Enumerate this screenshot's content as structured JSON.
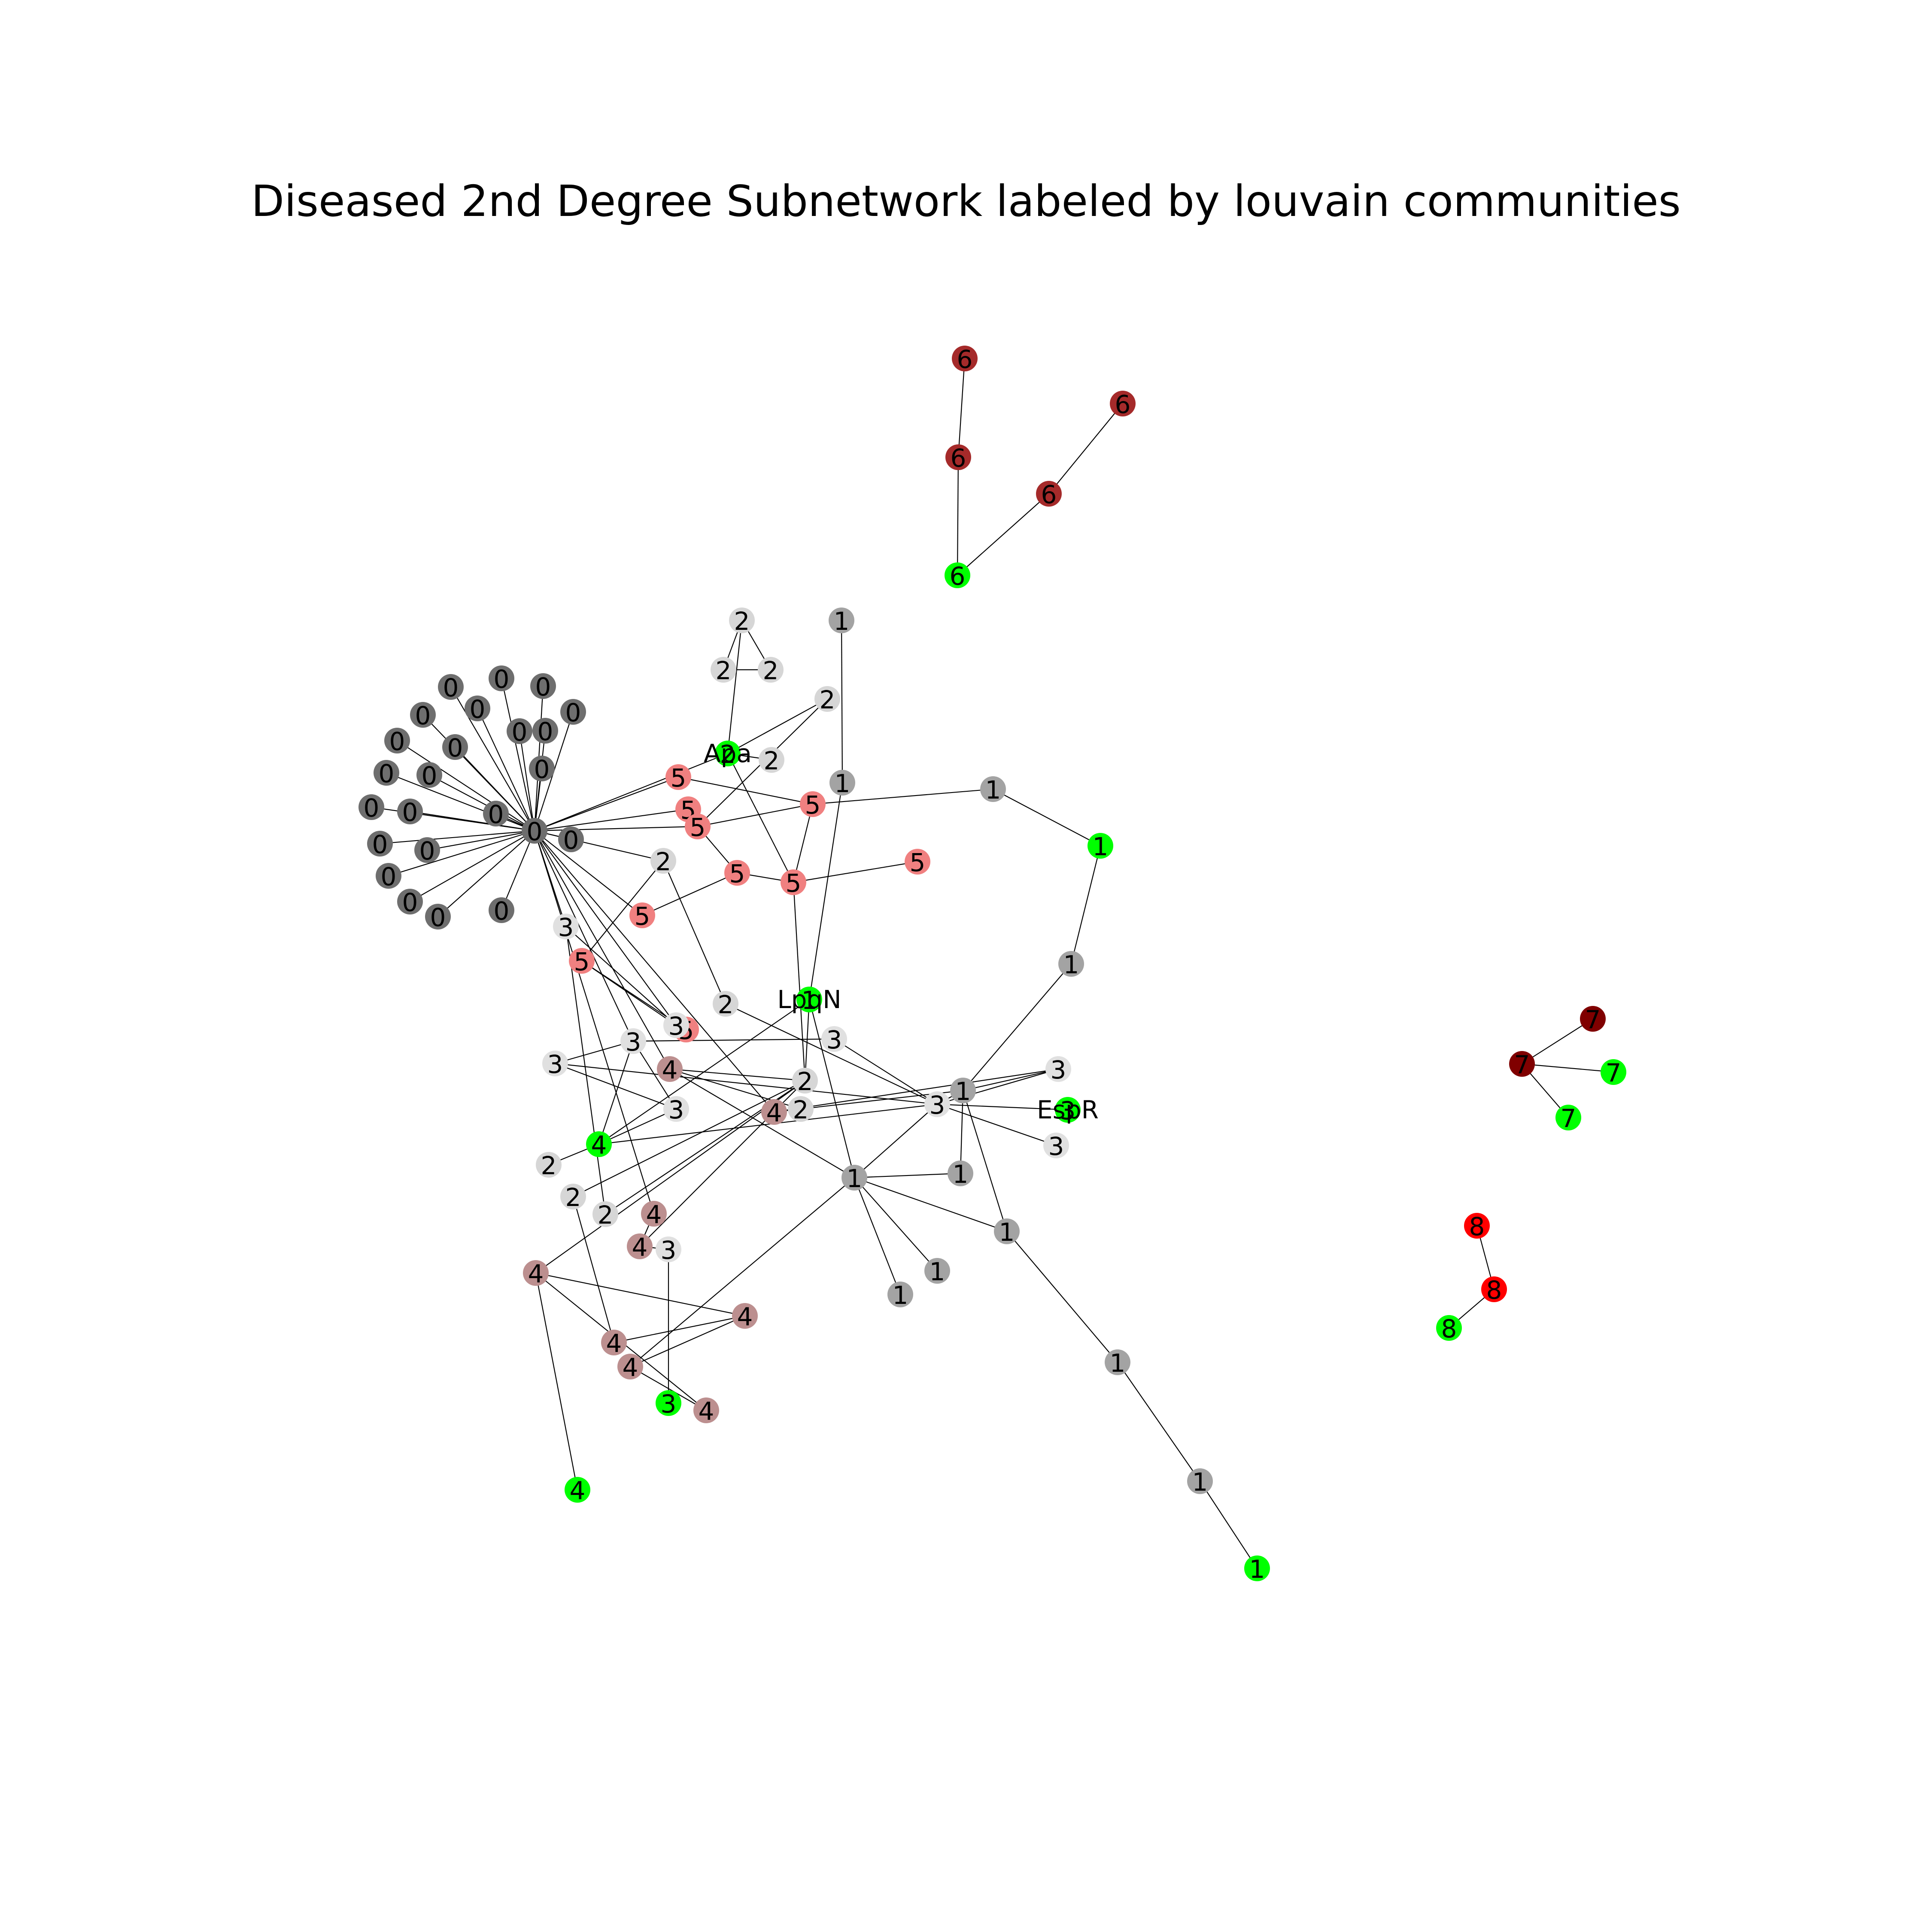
{
  "figure": {
    "title": "Diseased 2nd Degree Subnetwork labeled by louvain communities"
  },
  "colors": {
    "community_0": "#6e6e6e",
    "community_1": "#a3a3a3",
    "community_2": "#d6d6d6",
    "community_3": "#e0e0e0",
    "community_4": "#bc8f8f",
    "community_5": "#f08080",
    "community_6": "#a52a2a",
    "community_7": "#800000",
    "community_8": "#ff0000",
    "highlight": "#00ff00",
    "edge": "#000000",
    "label_text": "#000000"
  },
  "graph": {
    "nodes": [
      {
        "id": "h0",
        "community": "0",
        "highlighted": false
      },
      {
        "id": "a1",
        "community": "0",
        "highlighted": false
      },
      {
        "id": "a2",
        "community": "0",
        "highlighted": false
      },
      {
        "id": "a3",
        "community": "0",
        "highlighted": false
      },
      {
        "id": "a4",
        "community": "0",
        "highlighted": false
      },
      {
        "id": "a5",
        "community": "0",
        "highlighted": false
      },
      {
        "id": "a6",
        "community": "0",
        "highlighted": false
      },
      {
        "id": "a7",
        "community": "0",
        "highlighted": false
      },
      {
        "id": "a8",
        "community": "0",
        "highlighted": false
      },
      {
        "id": "a9",
        "community": "0",
        "highlighted": false
      },
      {
        "id": "a10",
        "community": "0",
        "highlighted": false
      },
      {
        "id": "a11",
        "community": "0",
        "highlighted": false
      },
      {
        "id": "a12",
        "community": "0",
        "highlighted": false
      },
      {
        "id": "a13",
        "community": "0",
        "highlighted": false
      },
      {
        "id": "a14",
        "community": "0",
        "highlighted": false
      },
      {
        "id": "a15",
        "community": "0",
        "highlighted": false
      },
      {
        "id": "a16",
        "community": "0",
        "highlighted": false
      },
      {
        "id": "a17",
        "community": "0",
        "highlighted": false
      },
      {
        "id": "a18",
        "community": "0",
        "highlighted": false
      },
      {
        "id": "a19",
        "community": "0",
        "highlighted": false
      },
      {
        "id": "a20",
        "community": "0",
        "highlighted": false
      },
      {
        "id": "a21",
        "community": "0",
        "highlighted": false
      },
      {
        "id": "a22",
        "community": "0",
        "highlighted": false
      },
      {
        "id": "a23",
        "community": "0",
        "highlighted": false
      },
      {
        "id": "t2a",
        "community": "2",
        "highlighted": false
      },
      {
        "id": "t2b",
        "community": "2",
        "highlighted": false
      },
      {
        "id": "t2c",
        "community": "2",
        "highlighted": false
      },
      {
        "id": "t2d",
        "community": "2",
        "highlighted": false
      },
      {
        "id": "t2e",
        "community": "2",
        "highlighted": false
      },
      {
        "id": "apa",
        "community": "2",
        "highlighted": true,
        "name": "Apa"
      },
      {
        "id": "c1top",
        "community": "1",
        "highlighted": false
      },
      {
        "id": "c1b",
        "community": "1",
        "highlighted": false
      },
      {
        "id": "c1c",
        "community": "1",
        "highlighted": false
      },
      {
        "id": "c1g",
        "community": "1",
        "highlighted": true
      },
      {
        "id": "c1d",
        "community": "1",
        "highlighted": false
      },
      {
        "id": "c5a",
        "community": "5",
        "highlighted": false
      },
      {
        "id": "c5b",
        "community": "5",
        "highlighted": false
      },
      {
        "id": "c5c",
        "community": "5",
        "highlighted": false
      },
      {
        "id": "c5d",
        "community": "5",
        "highlighted": false
      },
      {
        "id": "c5e",
        "community": "5",
        "highlighted": false
      },
      {
        "id": "c5f",
        "community": "5",
        "highlighted": false
      },
      {
        "id": "c5g",
        "community": "5",
        "highlighted": false
      },
      {
        "id": "c5h",
        "community": "5",
        "highlighted": false
      },
      {
        "id": "c5i",
        "community": "5",
        "highlighted": false
      },
      {
        "id": "c5j",
        "community": "5",
        "highlighted": false
      },
      {
        "id": "n2a",
        "community": "2",
        "highlighted": false
      },
      {
        "id": "c3a",
        "community": "3",
        "highlighted": false
      },
      {
        "id": "lpqn",
        "community": "1",
        "highlighted": true,
        "name": "LpqN"
      },
      {
        "id": "n2b",
        "community": "2",
        "highlighted": false
      },
      {
        "id": "c3b",
        "community": "3",
        "highlighted": false
      },
      {
        "id": "c3c",
        "community": "3",
        "highlighted": false
      },
      {
        "id": "c3d",
        "community": "3",
        "highlighted": false
      },
      {
        "id": "c3e",
        "community": "3",
        "highlighted": false
      },
      {
        "id": "c4a",
        "community": "4",
        "highlighted": false
      },
      {
        "id": "n2c",
        "community": "2",
        "highlighted": false
      },
      {
        "id": "c3f",
        "community": "3",
        "highlighted": false
      },
      {
        "id": "c4b",
        "community": "4",
        "highlighted": false
      },
      {
        "id": "n2d",
        "community": "2",
        "highlighted": false
      },
      {
        "id": "c3g",
        "community": "3",
        "highlighted": false
      },
      {
        "id": "c1e",
        "community": "1",
        "highlighted": false
      },
      {
        "id": "c3h",
        "community": "3",
        "highlighted": false
      },
      {
        "id": "espr",
        "community": "3",
        "highlighted": true,
        "name": "EspR"
      },
      {
        "id": "c3i",
        "community": "3",
        "highlighted": false
      },
      {
        "id": "c4g",
        "community": "4",
        "highlighted": true
      },
      {
        "id": "n2e",
        "community": "2",
        "highlighted": false
      },
      {
        "id": "n2f",
        "community": "2",
        "highlighted": false
      },
      {
        "id": "n2g",
        "community": "2",
        "highlighted": false
      },
      {
        "id": "c1hub",
        "community": "1",
        "highlighted": false
      },
      {
        "id": "c1f",
        "community": "1",
        "highlighted": false
      },
      {
        "id": "c1h",
        "community": "1",
        "highlighted": false
      },
      {
        "id": "c1i",
        "community": "1",
        "highlighted": false
      },
      {
        "id": "c1j",
        "community": "1",
        "highlighted": false
      },
      {
        "id": "c1k",
        "community": "1",
        "highlighted": false
      },
      {
        "id": "c1l",
        "community": "1",
        "highlighted": false
      },
      {
        "id": "c1m",
        "community": "1",
        "highlighted": true
      },
      {
        "id": "c4c",
        "community": "4",
        "highlighted": false
      },
      {
        "id": "c4d",
        "community": "4",
        "highlighted": false
      },
      {
        "id": "c3j",
        "community": "3",
        "highlighted": false
      },
      {
        "id": "c4e",
        "community": "4",
        "highlighted": false
      },
      {
        "id": "c4f",
        "community": "4",
        "highlighted": false
      },
      {
        "id": "c4h",
        "community": "4",
        "highlighted": false
      },
      {
        "id": "c4i",
        "community": "4",
        "highlighted": false
      },
      {
        "id": "c3g2",
        "community": "3",
        "highlighted": true
      },
      {
        "id": "c4j",
        "community": "4",
        "highlighted": false
      },
      {
        "id": "c4k",
        "community": "4",
        "highlighted": true
      },
      {
        "id": "c6a",
        "community": "6",
        "highlighted": false
      },
      {
        "id": "c6b",
        "community": "6",
        "highlighted": false
      },
      {
        "id": "c6c",
        "community": "6",
        "highlighted": true
      },
      {
        "id": "c6d",
        "community": "6",
        "highlighted": false
      },
      {
        "id": "c6e",
        "community": "6",
        "highlighted": false
      },
      {
        "id": "c7a",
        "community": "7",
        "highlighted": false
      },
      {
        "id": "c7b",
        "community": "7",
        "highlighted": false
      },
      {
        "id": "c7c",
        "community": "7",
        "highlighted": true
      },
      {
        "id": "c7d",
        "community": "7",
        "highlighted": true
      },
      {
        "id": "c8a",
        "community": "8",
        "highlighted": false
      },
      {
        "id": "c8b",
        "community": "8",
        "highlighted": false
      },
      {
        "id": "c8c",
        "community": "8",
        "highlighted": true
      }
    ],
    "edges": [
      [
        "h0",
        "a1"
      ],
      [
        "h0",
        "a2"
      ],
      [
        "h0",
        "a3"
      ],
      [
        "h0",
        "a4"
      ],
      [
        "h0",
        "a5"
      ],
      [
        "h0",
        "a6"
      ],
      [
        "h0",
        "a7"
      ],
      [
        "h0",
        "a8"
      ],
      [
        "h0",
        "a9"
      ],
      [
        "h0",
        "a10"
      ],
      [
        "h0",
        "a11"
      ],
      [
        "h0",
        "a12"
      ],
      [
        "h0",
        "a13"
      ],
      [
        "h0",
        "a14"
      ],
      [
        "h0",
        "a15"
      ],
      [
        "h0",
        "a16"
      ],
      [
        "h0",
        "a17"
      ],
      [
        "h0",
        "a18"
      ],
      [
        "h0",
        "a19"
      ],
      [
        "h0",
        "a20"
      ],
      [
        "h0",
        "a21"
      ],
      [
        "h0",
        "a22"
      ],
      [
        "h0",
        "a23"
      ],
      [
        "h0",
        "c5a"
      ],
      [
        "h0",
        "c5c"
      ],
      [
        "h0",
        "c5b"
      ],
      [
        "h0",
        "apa"
      ],
      [
        "h0",
        "n2a"
      ],
      [
        "h0",
        "c5g"
      ],
      [
        "h0",
        "c3a"
      ],
      [
        "h0",
        "c3b"
      ],
      [
        "h0",
        "c3c"
      ],
      [
        "h0",
        "c4a"
      ],
      [
        "h0",
        "c4c"
      ],
      [
        "h0",
        "c4b"
      ],
      [
        "t2a",
        "t2b"
      ],
      [
        "t2a",
        "t2c"
      ],
      [
        "t2b",
        "t2c"
      ],
      [
        "t2a",
        "apa"
      ],
      [
        "apa",
        "t2d"
      ],
      [
        "apa",
        "t2e"
      ],
      [
        "t2d",
        "c5c"
      ],
      [
        "apa",
        "c5f"
      ],
      [
        "c1top",
        "c1b"
      ],
      [
        "c1b",
        "lpqn"
      ],
      [
        "c5d",
        "c1c"
      ],
      [
        "c1c",
        "c1g"
      ],
      [
        "c1g",
        "c1d"
      ],
      [
        "c1d",
        "c1e"
      ],
      [
        "c5a",
        "c5d"
      ],
      [
        "c5b",
        "c5c"
      ],
      [
        "c5c",
        "c5d"
      ],
      [
        "c5c",
        "c5e"
      ],
      [
        "c5e",
        "c5f"
      ],
      [
        "c5f",
        "c5j"
      ],
      [
        "c5f",
        "c5d"
      ],
      [
        "c5e",
        "c5g"
      ],
      [
        "c5f",
        "n2c"
      ],
      [
        "c5h",
        "c3b"
      ],
      [
        "c5h",
        "c5i"
      ],
      [
        "c3b",
        "c5i"
      ],
      [
        "n2a",
        "c5i"
      ],
      [
        "n2a",
        "n2b"
      ],
      [
        "c3a",
        "c3b"
      ],
      [
        "c3a",
        "n2g"
      ],
      [
        "lpqn",
        "c1hub"
      ],
      [
        "lpqn",
        "c4g"
      ],
      [
        "lpqn",
        "n2c"
      ],
      [
        "n2b",
        "c3g"
      ],
      [
        "c3c",
        "c3d"
      ],
      [
        "c3c",
        "c3e"
      ],
      [
        "c3c",
        "c4g"
      ],
      [
        "c3e",
        "c3g"
      ],
      [
        "c3d",
        "c3g"
      ],
      [
        "c3f",
        "c3e"
      ],
      [
        "c3f",
        "c3c"
      ],
      [
        "c4a",
        "n2c"
      ],
      [
        "c4a",
        "n2d"
      ],
      [
        "c4a",
        "c1hub"
      ],
      [
        "c4b",
        "c3h"
      ],
      [
        "c4b",
        "n2d"
      ],
      [
        "n2d",
        "c1e"
      ],
      [
        "c3g",
        "c1e"
      ],
      [
        "c3g",
        "espr"
      ],
      [
        "c3g",
        "c3h"
      ],
      [
        "c3g",
        "c3i"
      ],
      [
        "c3g",
        "c1hub"
      ],
      [
        "c3g",
        "c4g"
      ],
      [
        "c1e",
        "c1f"
      ],
      [
        "c1e",
        "c1j"
      ],
      [
        "c1e",
        "c3h"
      ],
      [
        "c4g",
        "n2e"
      ],
      [
        "c4g",
        "c3f"
      ],
      [
        "n2c",
        "n2f"
      ],
      [
        "n2c",
        "n2g"
      ],
      [
        "n2c",
        "c4d"
      ],
      [
        "n2c",
        "c4e"
      ],
      [
        "c1hub",
        "c1f"
      ],
      [
        "c1hub",
        "c1h"
      ],
      [
        "c1hub",
        "c1i"
      ],
      [
        "c1hub",
        "c1j"
      ],
      [
        "c1hub",
        "c4i"
      ],
      [
        "c1j",
        "c1k"
      ],
      [
        "c1k",
        "c1l"
      ],
      [
        "c1l",
        "c1m"
      ],
      [
        "n2f",
        "c4f"
      ],
      [
        "c4f",
        "c4h"
      ],
      [
        "c4h",
        "c4i"
      ],
      [
        "c4i",
        "c4j"
      ],
      [
        "c4j",
        "c4e"
      ],
      [
        "c4e",
        "c4h"
      ],
      [
        "c4e",
        "c4k"
      ],
      [
        "c4c",
        "c4d"
      ],
      [
        "c4d",
        "c3j"
      ],
      [
        "c3j",
        "c3g2"
      ],
      [
        "c6a",
        "c6b"
      ],
      [
        "c6b",
        "c6c"
      ],
      [
        "c6c",
        "c6e"
      ],
      [
        "c6e",
        "c6d"
      ],
      [
        "c7a",
        "c7b"
      ],
      [
        "c7b",
        "c7c"
      ],
      [
        "c7b",
        "c7d"
      ],
      [
        "c8a",
        "c8b"
      ],
      [
        "c8b",
        "c8c"
      ]
    ]
  }
}
